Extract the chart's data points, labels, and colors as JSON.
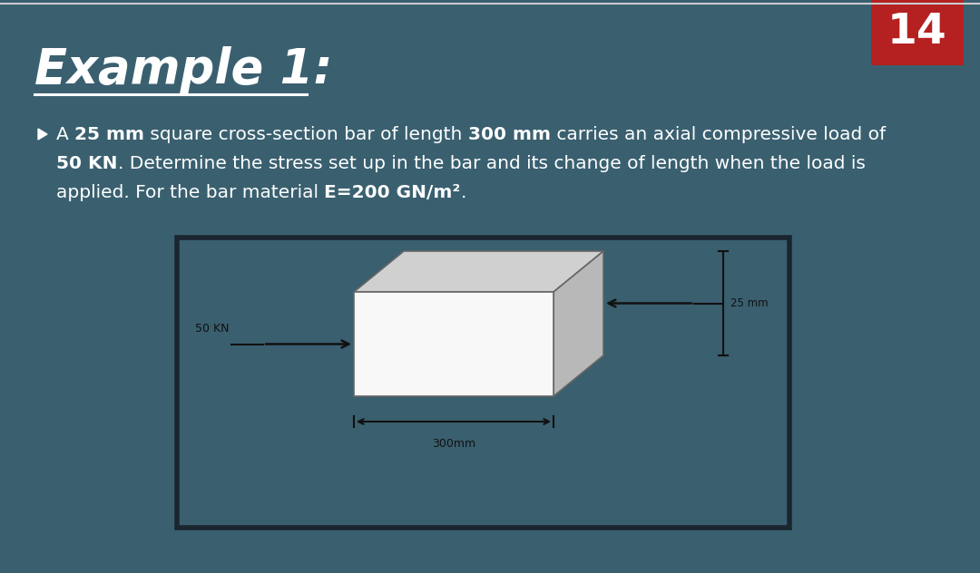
{
  "bg_color": "#3a6070",
  "title": "Example 1:",
  "title_num": "14",
  "title_num_bg": "#b52020",
  "title_color": "#ffffff",
  "box_bg_color": "#3a6070",
  "box_edge_color": "#1a2530",
  "bar_face_color": "#f8f8f8",
  "bar_top_color": "#d0d0d0",
  "bar_side_color": "#b8b8b8",
  "arrow_color": "#111111",
  "dim_color": "#111111",
  "label_50kn": "50 KN",
  "label_25mm": "25 mm",
  "label_300mm": "300mm",
  "font_size_body": 14.5,
  "font_size_title": 38,
  "font_size_badge": 34
}
